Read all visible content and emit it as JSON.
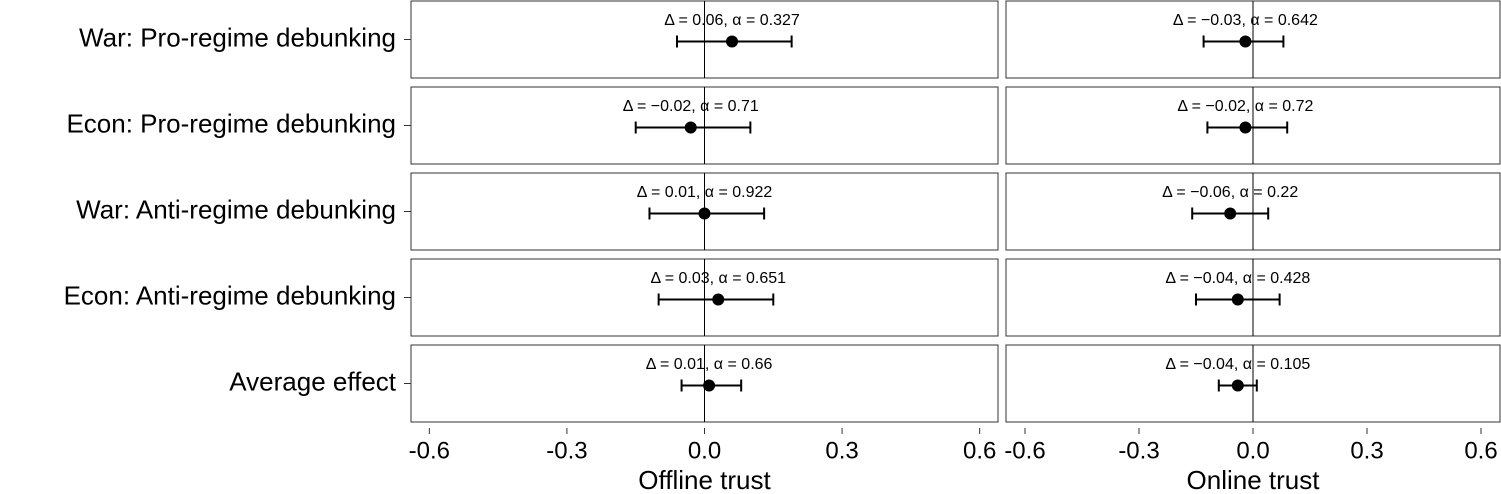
{
  "chart_data": {
    "type": "forest",
    "categories": [
      "War: Pro-regime debunking",
      "Econ: Pro-regime debunking",
      "War: Anti-regime debunking",
      "Econ: Anti-regime debunking",
      "Average effect"
    ],
    "color": "#000000",
    "panels": [
      {
        "xlabel": "Offline trust",
        "xlim": [
          -0.64,
          0.64
        ],
        "xticks": [
          -0.6,
          -0.3,
          {
            "value": 0,
            "label": "0.0"
          },
          0.3,
          0.6
        ],
        "values": [
          0.06,
          -0.03,
          0.0,
          0.03,
          0.01
        ],
        "lower": [
          -0.06,
          -0.15,
          -0.12,
          -0.1,
          -0.05
        ],
        "upper": [
          0.19,
          0.1,
          0.13,
          0.15,
          0.08
        ],
        "annotations": [
          "Δ = 0.06, α = 0.327",
          "Δ = −0.02, α = 0.71",
          "Δ = 0.01, α = 0.922",
          "Δ = 0.03, α = 0.651",
          "Δ = 0.01, α = 0.66"
        ]
      },
      {
        "xlabel": "Online trust",
        "xlim": [
          -0.65,
          0.65
        ],
        "xticks": [
          -0.6,
          -0.3,
          {
            "value": 0,
            "label": "0.0"
          },
          0.3,
          0.6
        ],
        "values": [
          -0.02,
          -0.02,
          -0.06,
          -0.04,
          -0.04
        ],
        "lower": [
          -0.13,
          -0.12,
          -0.16,
          -0.15,
          -0.09
        ],
        "upper": [
          0.08,
          0.09,
          0.04,
          0.07,
          0.01
        ],
        "annotations": [
          "Δ = −0.03, α = 0.642",
          "Δ = −0.02, α = 0.72",
          "Δ = −0.06, α = 0.22",
          "Δ = −0.04, α = 0.428",
          "Δ = −0.04, α = 0.105"
        ]
      }
    ]
  }
}
